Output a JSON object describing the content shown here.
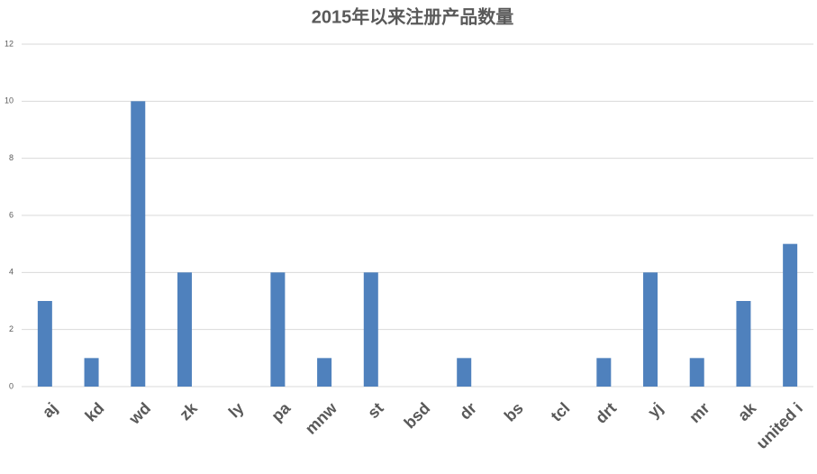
{
  "chart_data": {
    "type": "bar",
    "title": "2015年以来注册产品数量",
    "categories": [
      "aj",
      "kd",
      "wd",
      "zk",
      "ly",
      "pa",
      "mnw",
      "st",
      "bsd",
      "dr",
      "bs",
      "tcl",
      "drt",
      "yj",
      "mr",
      "ak",
      "united i"
    ],
    "values": [
      3,
      1,
      10,
      4,
      0,
      4,
      1,
      4,
      0,
      1,
      0,
      0,
      1,
      4,
      1,
      3,
      5
    ],
    "color": "#4f81bd",
    "ylim": [
      0,
      12
    ],
    "yticks": [
      0,
      2,
      4,
      6,
      8,
      10,
      12
    ],
    "grid": true
  }
}
